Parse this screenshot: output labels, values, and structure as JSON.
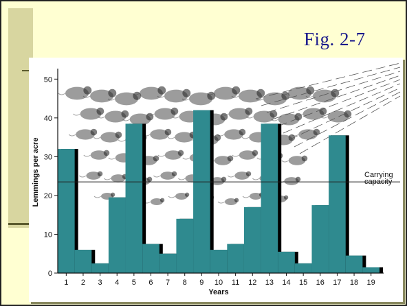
{
  "slide": {
    "title": "Fig. 2-7"
  },
  "chart_data": {
    "type": "bar",
    "xlabel": "Years",
    "ylabel": "Lemmings per acre",
    "categories": [
      "1",
      "2",
      "3",
      "4",
      "5",
      "6",
      "7",
      "8",
      "9",
      "10",
      "11",
      "12",
      "13",
      "14",
      "15",
      "16",
      "17",
      "18",
      "19"
    ],
    "values": [
      32,
      6,
      2.5,
      19.5,
      38.5,
      7.5,
      5,
      14,
      42,
      6,
      7.5,
      17,
      38.5,
      5.5,
      2.5,
      17.5,
      35.5,
      4.5,
      1.5
    ],
    "ylim": [
      0,
      52
    ],
    "yticks": [
      0,
      10,
      20,
      30,
      40,
      50
    ],
    "bar_color": "#2f8a8f",
    "reference_line": {
      "value": 23.5,
      "label_lines": [
        "Carrying",
        "capacity"
      ]
    },
    "grid": false
  }
}
